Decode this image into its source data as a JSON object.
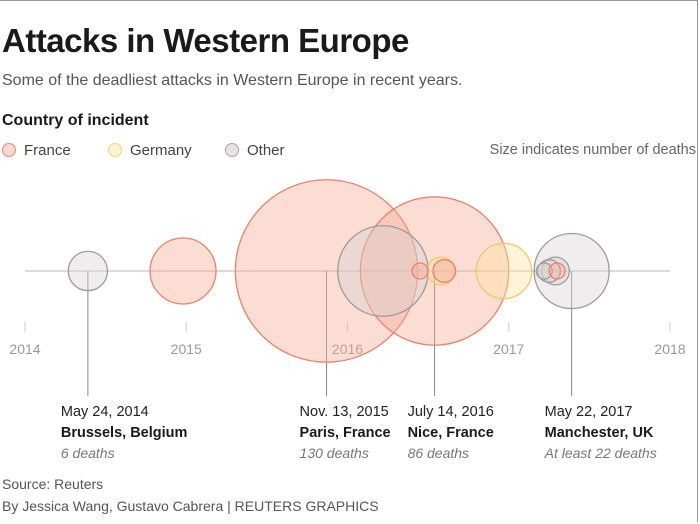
{
  "title": "Attacks in Western Europe",
  "subtitle": "Some of the deadliest attacks in Western Europe in recent years.",
  "legend": {
    "title": "Country of incident",
    "items": [
      {
        "label": "France",
        "fill": "#f9c9bb",
        "stroke": "#e98a76"
      },
      {
        "label": "Germany",
        "fill": "#fdeebf",
        "stroke": "#f4d37c"
      },
      {
        "label": "Other",
        "fill": "#e2e0e0",
        "stroke": "#a9a6a6"
      }
    ],
    "size_note": "Size indicates number of deaths"
  },
  "source": "Source: Reuters",
  "credit": "By Jessica Wang, Gustavo Cabrera | REUTERS GRAPHICS",
  "colors": {
    "France": {
      "fill": "#f6a994",
      "stroke": "#e7826c"
    },
    "Germany": {
      "fill": "#fde3a0",
      "stroke": "#f3c765"
    },
    "Other": {
      "fill": "#d6d3d3",
      "stroke": "#9e9b9b"
    },
    "axis": "#cfcfcf",
    "tick": "#999999",
    "leader": "#888888"
  },
  "chart_data": {
    "type": "scatter",
    "encoding": "bubble size = number of deaths",
    "x_axis": {
      "ticks": [
        "2014",
        "2015",
        "2016",
        "2017",
        "2018"
      ],
      "range": [
        2014,
        2018
      ]
    },
    "series": [
      {
        "date": 2014.39,
        "country": "Other",
        "deaths": 6
      },
      {
        "date": 2014.98,
        "country": "France",
        "deaths": 17
      },
      {
        "date": 2015.87,
        "country": "France",
        "deaths": 130
      },
      {
        "date": 2016.22,
        "country": "Other",
        "deaths": 32
      },
      {
        "date": 2016.54,
        "country": "France",
        "deaths": 86
      },
      {
        "date": 2016.45,
        "country": "France",
        "deaths": 1
      },
      {
        "date": 2016.58,
        "country": "Germany",
        "deaths": 3
      },
      {
        "date": 2016.6,
        "country": "France",
        "deaths": 2
      },
      {
        "date": 2016.97,
        "country": "Germany",
        "deaths": 12
      },
      {
        "date": 2017.22,
        "country": "Other",
        "deaths": 1
      },
      {
        "date": 2017.25,
        "country": "Other",
        "deaths": 2
      },
      {
        "date": 2017.29,
        "country": "Other",
        "deaths": 3
      },
      {
        "date": 2017.3,
        "country": "France",
        "deaths": 1
      },
      {
        "date": 2017.39,
        "country": "Other",
        "deaths": 22
      }
    ],
    "annotations": [
      {
        "date_label": "May 24, 2014",
        "place": "Brussels, Belgium",
        "deaths_label": "6 deaths",
        "x": 2014.39
      },
      {
        "date_label": "Nov. 13, 2015",
        "place": "Paris, France",
        "deaths_label": "130 deaths",
        "x": 2015.87
      },
      {
        "date_label": "July 14, 2016",
        "place": "Nice, France",
        "deaths_label": "86 deaths",
        "x": 2016.54
      },
      {
        "date_label": "May 22, 2017",
        "place": "Manchester, UK",
        "deaths_label": "At least 22 deaths",
        "x": 2017.39
      }
    ]
  }
}
